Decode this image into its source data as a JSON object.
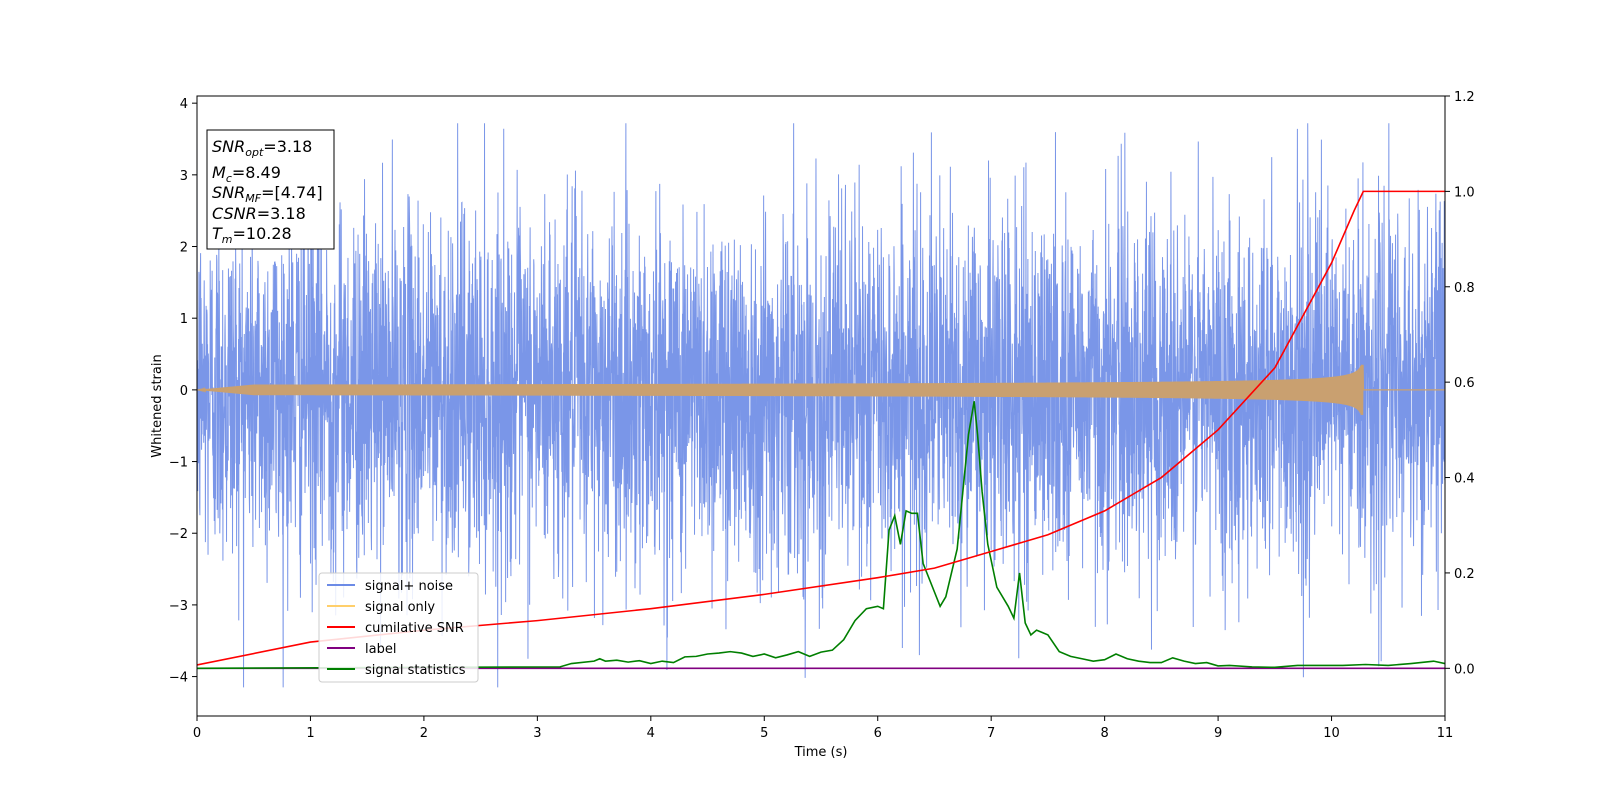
{
  "chart_data": {
    "type": "line",
    "xlabel": "Time (s)",
    "ylabel": "Whitened strain",
    "xlim": [
      0,
      11
    ],
    "ylim_left": [
      -4.55,
      4.1
    ],
    "ylim_right": [
      -0.1,
      1.2
    ],
    "x_ticks": [
      "0",
      "1",
      "2",
      "3",
      "4",
      "5",
      "6",
      "7",
      "8",
      "9",
      "10",
      "11"
    ],
    "y_left_ticks": [
      "−4",
      "−3",
      "−2",
      "−1",
      "0",
      "1",
      "2",
      "3",
      "4"
    ],
    "y_right_ticks": [
      "0.0",
      "0.2",
      "0.4",
      "0.6",
      "0.8",
      "1.0",
      "1.2"
    ],
    "grid": false,
    "legend_position": "lower-left",
    "legend": [
      {
        "label": "signal+ noise",
        "color": "#6c8be6"
      },
      {
        "label": "signal only",
        "color": "#ffcf6b"
      },
      {
        "label": "cumilative SNR",
        "color": "#ff0000"
      },
      {
        "label": "label",
        "color": "#800080"
      },
      {
        "label": "signal statistics",
        "color": "#007f00"
      }
    ],
    "info_box": {
      "snr_opt": "=3.18",
      "mc": "=8.49",
      "snr_mf": "=[4.74]",
      "csnr": "=3.18",
      "tm": "=10.28"
    },
    "noise": {
      "std": 1.25,
      "min": -4.15,
      "max": 3.72
    },
    "signal_only": {
      "merger_time": 10.28,
      "peak_amplitude": 0.35
    },
    "cumulative_snr": {
      "axis": "right",
      "x": [
        0,
        1,
        2,
        3,
        4,
        5,
        6,
        6.5,
        7,
        7.5,
        8,
        8.5,
        9,
        9.5,
        10,
        10.2,
        10.28,
        11
      ],
      "y": [
        0.007,
        0.055,
        0.08,
        0.1,
        0.125,
        0.155,
        0.19,
        0.21,
        0.245,
        0.28,
        0.33,
        0.4,
        0.5,
        0.63,
        0.85,
        0.96,
        1.0,
        1.0
      ]
    },
    "label": {
      "axis": "right",
      "x": [
        0,
        11
      ],
      "y": [
        0,
        0
      ]
    },
    "signal_statistics": {
      "axis": "right",
      "x": [
        0,
        3.2,
        3.3,
        3.5,
        3.55,
        3.6,
        3.7,
        3.8,
        3.9,
        4.0,
        4.1,
        4.2,
        4.3,
        4.4,
        4.5,
        4.6,
        4.7,
        4.8,
        4.9,
        5.0,
        5.1,
        5.2,
        5.3,
        5.4,
        5.5,
        5.6,
        5.7,
        5.8,
        5.9,
        6.0,
        6.05,
        6.1,
        6.15,
        6.2,
        6.25,
        6.3,
        6.35,
        6.4,
        6.5,
        6.55,
        6.6,
        6.65,
        6.7,
        6.8,
        6.85,
        6.88,
        6.92,
        6.97,
        7.05,
        7.15,
        7.2,
        7.25,
        7.3,
        7.35,
        7.4,
        7.45,
        7.5,
        7.6,
        7.7,
        7.8,
        7.9,
        8.0,
        8.1,
        8.2,
        8.3,
        8.4,
        8.5,
        8.6,
        8.7,
        8.8,
        8.9,
        9.0,
        9.1,
        9.3,
        9.5,
        9.7,
        9.9,
        10.1,
        10.3,
        10.5,
        10.7,
        10.9,
        11.0
      ],
      "y": [
        0.0,
        0.003,
        0.01,
        0.015,
        0.02,
        0.015,
        0.017,
        0.013,
        0.016,
        0.01,
        0.015,
        0.012,
        0.024,
        0.025,
        0.03,
        0.032,
        0.035,
        0.032,
        0.025,
        0.03,
        0.022,
        0.028,
        0.035,
        0.025,
        0.034,
        0.038,
        0.06,
        0.1,
        0.125,
        0.13,
        0.125,
        0.29,
        0.32,
        0.26,
        0.33,
        0.325,
        0.325,
        0.22,
        0.16,
        0.13,
        0.15,
        0.2,
        0.25,
        0.49,
        0.56,
        0.49,
        0.37,
        0.26,
        0.17,
        0.13,
        0.105,
        0.2,
        0.095,
        0.07,
        0.08,
        0.075,
        0.07,
        0.035,
        0.025,
        0.02,
        0.015,
        0.018,
        0.03,
        0.02,
        0.015,
        0.012,
        0.012,
        0.022,
        0.015,
        0.01,
        0.012,
        0.005,
        0.006,
        0.003,
        0.002,
        0.006,
        0.006,
        0.006,
        0.008,
        0.006,
        0.01,
        0.015,
        0.01
      ]
    }
  }
}
